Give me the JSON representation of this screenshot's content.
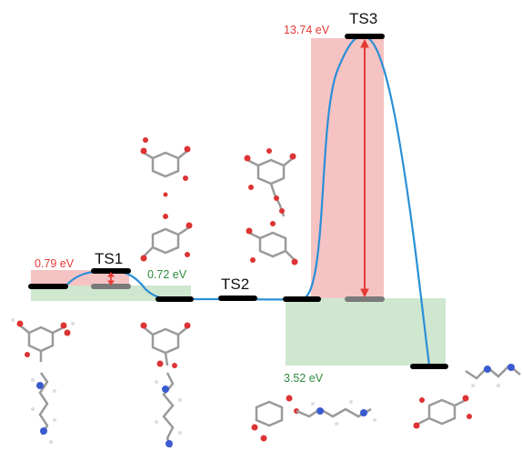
{
  "labels": {
    "ts1": "TS1",
    "ts2": "TS2",
    "ts3": "TS3"
  },
  "energies": {
    "barrier_ts1": "0.79 eV",
    "gap_ts1": "0.72 eV",
    "barrier_ts3": "13.74 eV",
    "gap_ts3": "3.52 eV"
  },
  "colors": {
    "red_text": "#e53935",
    "green_text": "#2e8b3d",
    "red_band": "#f6c3c3",
    "green_band": "#cfe6cf",
    "curve": "#2a8fd6",
    "level": "#000000",
    "sublevel": "#7a7a7a",
    "arrow": "#e53935"
  },
  "molecule_icons": [
    "phenol-molecule-icon",
    "amine-chain-molecule-icon",
    "ester-amine-molecule-icon",
    "dimer-molecule-icon",
    "linked-dimer-molecule-icon",
    "product-amine-molecule-icon",
    "product-benzene-molecule-icon"
  ]
}
